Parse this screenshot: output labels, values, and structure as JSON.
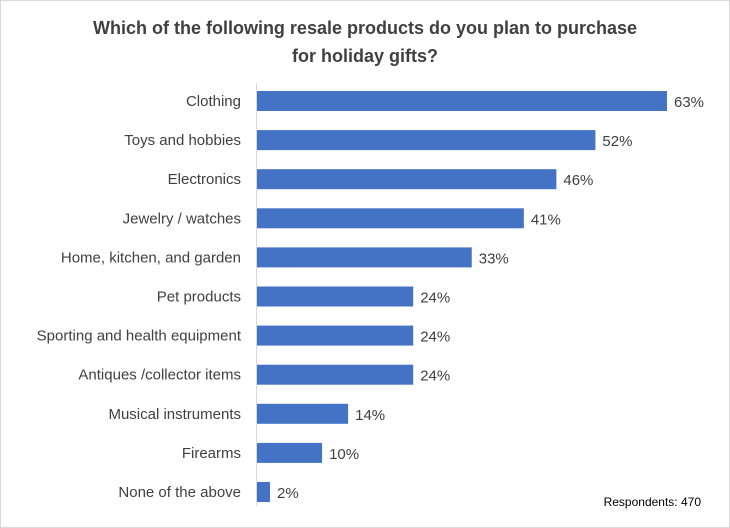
{
  "chart_data": {
    "type": "bar",
    "orientation": "horizontal",
    "title": [
      "Which of the following resale products do you plan to purchase",
      "for holiday gifts?"
    ],
    "categories": [
      "Clothing",
      "Toys and hobbies",
      "Electronics",
      "Jewelry / watches",
      "Home, kitchen, and garden",
      "Pet products",
      "Sporting and health equipment",
      "Antiques /collector items",
      "Musical instruments",
      "Firearms",
      "None of the above"
    ],
    "values": [
      63,
      52,
      46,
      41,
      33,
      24,
      24,
      24,
      14,
      10,
      2
    ],
    "value_labels": [
      "63%",
      "52%",
      "46%",
      "41%",
      "33%",
      "24%",
      "24%",
      "24%",
      "14%",
      "10%",
      "2%"
    ],
    "unit": "%",
    "xlim": [
      0,
      63
    ],
    "grid": false,
    "legend": "none",
    "bar_color": "#4472C4",
    "annotation": "Respondents: 470"
  }
}
